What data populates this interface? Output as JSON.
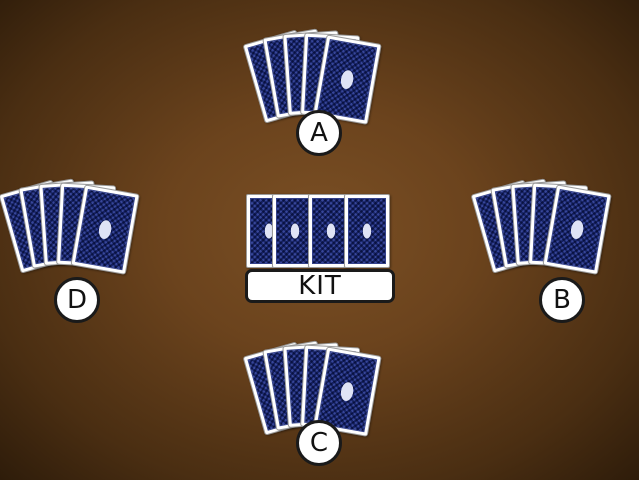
{
  "players": [
    {
      "id": "player-a",
      "label": "A",
      "card_count": 5
    },
    {
      "id": "player-b",
      "label": "B",
      "card_count": 5
    },
    {
      "id": "player-c",
      "label": "C",
      "card_count": 5
    },
    {
      "id": "player-d",
      "label": "D",
      "card_count": 5
    }
  ],
  "kit": {
    "label": "KIT",
    "card_count": 4
  },
  "colors": {
    "table": "#6b431d",
    "card_back": "#31427f"
  }
}
